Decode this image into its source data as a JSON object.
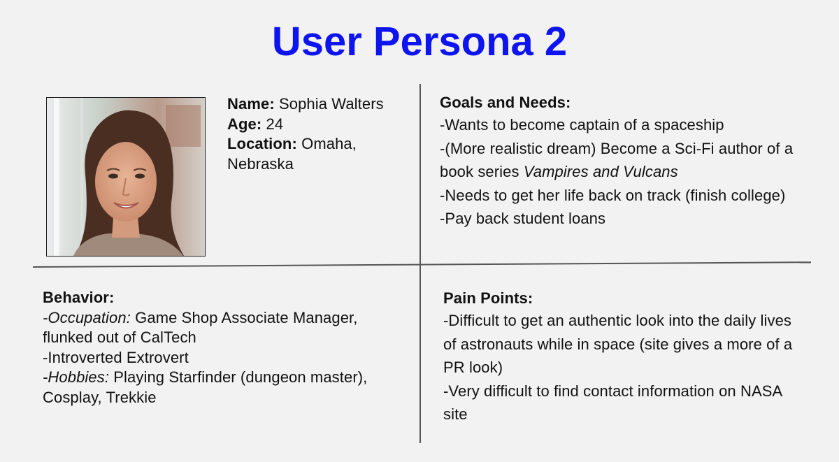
{
  "title": "User Persona 2",
  "colors": {
    "title": "#0d14ef",
    "background": "#f2f2f2",
    "divider": "#555555"
  },
  "profile": {
    "name_label": "Name:",
    "name_value": "Sophia Walters",
    "age_label": "Age:",
    "age_value": "24",
    "location_label": "Location:",
    "location_value": "Omaha, Nebraska"
  },
  "goals": {
    "heading": "Goals and Needs:",
    "item1": "-Wants to become captain of a spaceship",
    "item2_prefix": "-(More realistic dream) Become a Sci-Fi author of a book series ",
    "item2_italic": "Vampires and Vulcans",
    "item3": "-Needs to get her life back on track (finish college)",
    "item4": "-Pay back student loans"
  },
  "behavior": {
    "heading": "Behavior:",
    "occupation_label": "-Occupation:",
    "occupation_value": " Game Shop Associate Manager, flunked out of CalTech",
    "item2": "-Introverted Extrovert",
    "hobbies_label": "-Hobbies:",
    "hobbies_value": " Playing Starfinder (dungeon master), Cosplay, Trekkie"
  },
  "pain_points": {
    "heading": "Pain Points:",
    "item1": "-Difficult to get an authentic look into the daily lives of astronauts while in space (site gives a more of a PR look)",
    "item2": "-Very difficult to find contact information on NASA site"
  }
}
